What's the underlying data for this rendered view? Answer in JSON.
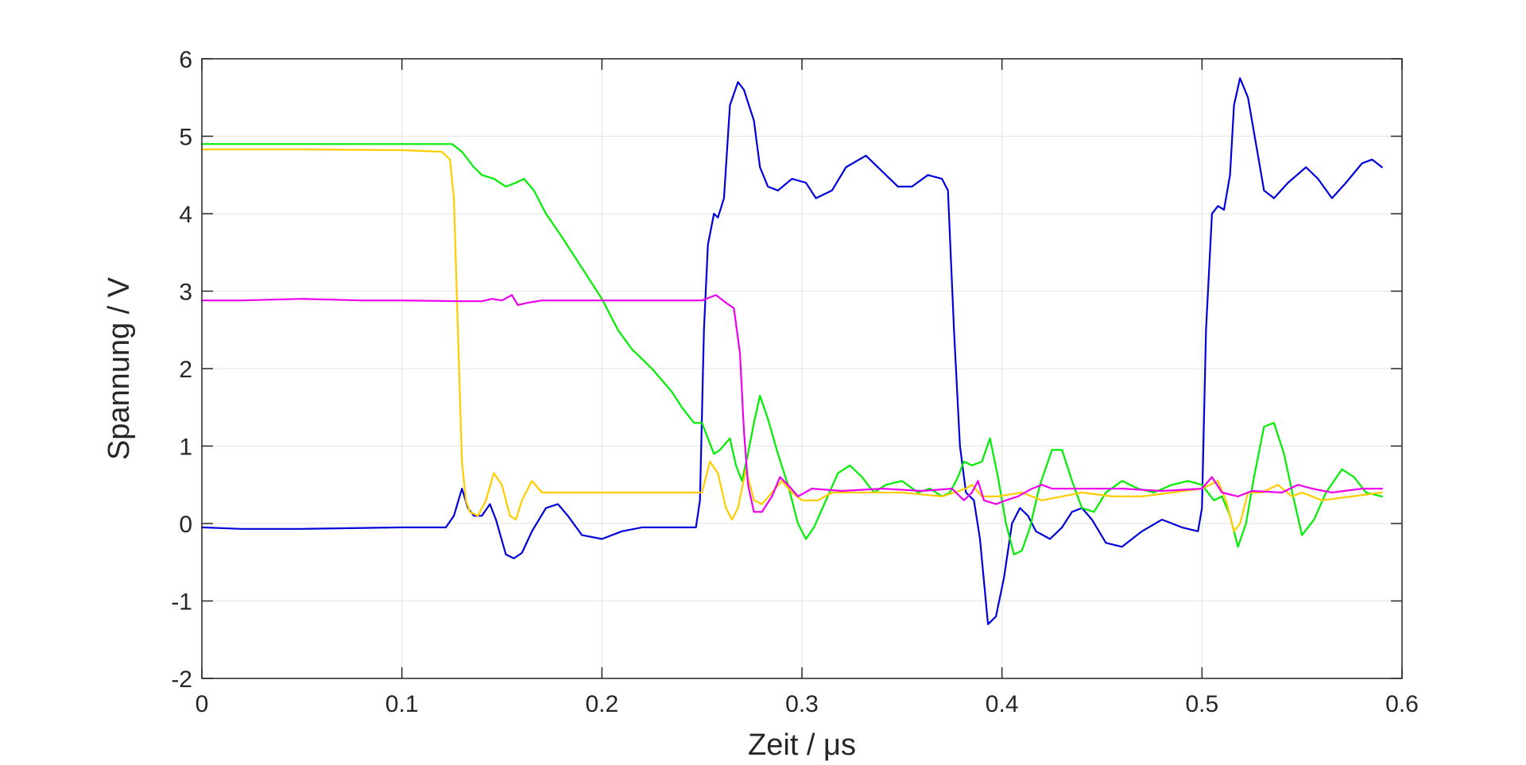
{
  "chart_data": {
    "type": "line",
    "xlabel": "Zeit / μs",
    "ylabel": "Spannung / V",
    "xlim": [
      0,
      0.6
    ],
    "ylim": [
      -2,
      6
    ],
    "x_ticks": [
      "0",
      "0.1",
      "0.2",
      "0.3",
      "0.4",
      "0.5",
      "0.6"
    ],
    "y_ticks": [
      "-2",
      "-1",
      "0",
      "1",
      "2",
      "3",
      "4",
      "5",
      "6"
    ],
    "grid": true,
    "series": [
      {
        "color": "#0000dd",
        "points": [
          [
            0,
            -0.05
          ],
          [
            0.02,
            -0.07
          ],
          [
            0.05,
            -0.07
          ],
          [
            0.1,
            -0.05
          ],
          [
            0.122,
            -0.05
          ],
          [
            0.126,
            0.1
          ],
          [
            0.13,
            0.45
          ],
          [
            0.133,
            0.2
          ],
          [
            0.136,
            0.1
          ],
          [
            0.14,
            0.1
          ],
          [
            0.144,
            0.25
          ],
          [
            0.147,
            0.05
          ],
          [
            0.152,
            -0.4
          ],
          [
            0.156,
            -0.45
          ],
          [
            0.16,
            -0.38
          ],
          [
            0.165,
            -0.1
          ],
          [
            0.172,
            0.2
          ],
          [
            0.178,
            0.25
          ],
          [
            0.183,
            0.1
          ],
          [
            0.19,
            -0.15
          ],
          [
            0.2,
            -0.2
          ],
          [
            0.21,
            -0.1
          ],
          [
            0.22,
            -0.05
          ],
          [
            0.235,
            -0.05
          ],
          [
            0.247,
            -0.05
          ],
          [
            0.249,
            0.3
          ],
          [
            0.251,
            2.5
          ],
          [
            0.253,
            3.6
          ],
          [
            0.256,
            4.0
          ],
          [
            0.258,
            3.95
          ],
          [
            0.261,
            4.2
          ],
          [
            0.264,
            5.4
          ],
          [
            0.268,
            5.7
          ],
          [
            0.271,
            5.6
          ],
          [
            0.276,
            5.2
          ],
          [
            0.279,
            4.6
          ],
          [
            0.283,
            4.35
          ],
          [
            0.288,
            4.3
          ],
          [
            0.295,
            4.45
          ],
          [
            0.302,
            4.4
          ],
          [
            0.307,
            4.2
          ],
          [
            0.315,
            4.3
          ],
          [
            0.322,
            4.6
          ],
          [
            0.332,
            4.75
          ],
          [
            0.342,
            4.5
          ],
          [
            0.348,
            4.35
          ],
          [
            0.355,
            4.35
          ],
          [
            0.363,
            4.5
          ],
          [
            0.37,
            4.45
          ],
          [
            0.373,
            4.3
          ],
          [
            0.376,
            2.5
          ],
          [
            0.379,
            1.0
          ],
          [
            0.382,
            0.4
          ],
          [
            0.386,
            0.3
          ],
          [
            0.389,
            -0.2
          ],
          [
            0.393,
            -1.3
          ],
          [
            0.397,
            -1.2
          ],
          [
            0.401,
            -0.7
          ],
          [
            0.405,
            0.0
          ],
          [
            0.409,
            0.2
          ],
          [
            0.413,
            0.1
          ],
          [
            0.417,
            -0.1
          ],
          [
            0.424,
            -0.2
          ],
          [
            0.43,
            -0.05
          ],
          [
            0.435,
            0.15
          ],
          [
            0.44,
            0.2
          ],
          [
            0.445,
            0.05
          ],
          [
            0.452,
            -0.25
          ],
          [
            0.46,
            -0.3
          ],
          [
            0.47,
            -0.1
          ],
          [
            0.48,
            0.05
          ],
          [
            0.49,
            -0.05
          ],
          [
            0.498,
            -0.1
          ],
          [
            0.5,
            0.2
          ],
          [
            0.502,
            2.5
          ],
          [
            0.505,
            4.0
          ],
          [
            0.508,
            4.1
          ],
          [
            0.511,
            4.05
          ],
          [
            0.514,
            4.5
          ],
          [
            0.516,
            5.4
          ],
          [
            0.519,
            5.75
          ],
          [
            0.523,
            5.5
          ],
          [
            0.527,
            4.9
          ],
          [
            0.531,
            4.3
          ],
          [
            0.536,
            4.2
          ],
          [
            0.543,
            4.4
          ],
          [
            0.552,
            4.6
          ],
          [
            0.558,
            4.45
          ],
          [
            0.565,
            4.2
          ],
          [
            0.572,
            4.4
          ],
          [
            0.58,
            4.65
          ],
          [
            0.585,
            4.7
          ],
          [
            0.59,
            4.6
          ]
        ]
      },
      {
        "color": "#00ee00",
        "points": [
          [
            0,
            4.9
          ],
          [
            0.05,
            4.9
          ],
          [
            0.1,
            4.9
          ],
          [
            0.125,
            4.9
          ],
          [
            0.13,
            4.8
          ],
          [
            0.136,
            4.6
          ],
          [
            0.14,
            4.5
          ],
          [
            0.146,
            4.45
          ],
          [
            0.152,
            4.35
          ],
          [
            0.157,
            4.4
          ],
          [
            0.161,
            4.45
          ],
          [
            0.166,
            4.3
          ],
          [
            0.172,
            4.0
          ],
          [
            0.18,
            3.7
          ],
          [
            0.19,
            3.3
          ],
          [
            0.2,
            2.9
          ],
          [
            0.208,
            2.5
          ],
          [
            0.215,
            2.25
          ],
          [
            0.225,
            2.0
          ],
          [
            0.235,
            1.7
          ],
          [
            0.24,
            1.5
          ],
          [
            0.246,
            1.3
          ],
          [
            0.25,
            1.3
          ],
          [
            0.253,
            1.1
          ],
          [
            0.256,
            0.9
          ],
          [
            0.259,
            0.95
          ],
          [
            0.264,
            1.1
          ],
          [
            0.267,
            0.75
          ],
          [
            0.27,
            0.55
          ],
          [
            0.273,
            0.9
          ],
          [
            0.276,
            1.3
          ],
          [
            0.279,
            1.65
          ],
          [
            0.283,
            1.35
          ],
          [
            0.288,
            0.9
          ],
          [
            0.293,
            0.5
          ],
          [
            0.298,
            0.0
          ],
          [
            0.302,
            -0.2
          ],
          [
            0.306,
            -0.05
          ],
          [
            0.312,
            0.3
          ],
          [
            0.318,
            0.65
          ],
          [
            0.324,
            0.75
          ],
          [
            0.33,
            0.6
          ],
          [
            0.336,
            0.4
          ],
          [
            0.342,
            0.5
          ],
          [
            0.35,
            0.55
          ],
          [
            0.358,
            0.4
          ],
          [
            0.364,
            0.45
          ],
          [
            0.37,
            0.35
          ],
          [
            0.374,
            0.4
          ],
          [
            0.378,
            0.6
          ],
          [
            0.381,
            0.8
          ],
          [
            0.385,
            0.75
          ],
          [
            0.39,
            0.8
          ],
          [
            0.394,
            1.1
          ],
          [
            0.398,
            0.6
          ],
          [
            0.402,
            0.0
          ],
          [
            0.406,
            -0.4
          ],
          [
            0.41,
            -0.35
          ],
          [
            0.414,
            -0.05
          ],
          [
            0.419,
            0.5
          ],
          [
            0.425,
            0.95
          ],
          [
            0.43,
            0.95
          ],
          [
            0.435,
            0.55
          ],
          [
            0.44,
            0.2
          ],
          [
            0.446,
            0.15
          ],
          [
            0.452,
            0.4
          ],
          [
            0.46,
            0.55
          ],
          [
            0.468,
            0.45
          ],
          [
            0.476,
            0.4
          ],
          [
            0.485,
            0.5
          ],
          [
            0.493,
            0.55
          ],
          [
            0.5,
            0.5
          ],
          [
            0.506,
            0.3
          ],
          [
            0.51,
            0.35
          ],
          [
            0.514,
            0.1
          ],
          [
            0.518,
            -0.3
          ],
          [
            0.522,
            0.0
          ],
          [
            0.526,
            0.6
          ],
          [
            0.531,
            1.25
          ],
          [
            0.536,
            1.3
          ],
          [
            0.541,
            0.9
          ],
          [
            0.546,
            0.3
          ],
          [
            0.55,
            -0.15
          ],
          [
            0.556,
            0.05
          ],
          [
            0.562,
            0.4
          ],
          [
            0.57,
            0.7
          ],
          [
            0.576,
            0.6
          ],
          [
            0.582,
            0.4
          ],
          [
            0.59,
            0.35
          ]
        ]
      },
      {
        "color": "#ffcc00",
        "points": [
          [
            0,
            4.83
          ],
          [
            0.05,
            4.83
          ],
          [
            0.1,
            4.82
          ],
          [
            0.12,
            4.8
          ],
          [
            0.124,
            4.7
          ],
          [
            0.126,
            4.2
          ],
          [
            0.128,
            2.5
          ],
          [
            0.13,
            0.8
          ],
          [
            0.132,
            0.3
          ],
          [
            0.134,
            0.15
          ],
          [
            0.138,
            0.1
          ],
          [
            0.142,
            0.3
          ],
          [
            0.146,
            0.65
          ],
          [
            0.15,
            0.5
          ],
          [
            0.154,
            0.1
          ],
          [
            0.157,
            0.05
          ],
          [
            0.16,
            0.3
          ],
          [
            0.165,
            0.55
          ],
          [
            0.17,
            0.4
          ],
          [
            0.176,
            0.4
          ],
          [
            0.185,
            0.4
          ],
          [
            0.2,
            0.4
          ],
          [
            0.22,
            0.4
          ],
          [
            0.245,
            0.4
          ],
          [
            0.25,
            0.4
          ],
          [
            0.254,
            0.8
          ],
          [
            0.258,
            0.65
          ],
          [
            0.262,
            0.2
          ],
          [
            0.265,
            0.05
          ],
          [
            0.268,
            0.2
          ],
          [
            0.272,
            0.7
          ],
          [
            0.276,
            0.3
          ],
          [
            0.28,
            0.25
          ],
          [
            0.285,
            0.4
          ],
          [
            0.29,
            0.55
          ],
          [
            0.295,
            0.4
          ],
          [
            0.3,
            0.3
          ],
          [
            0.308,
            0.3
          ],
          [
            0.315,
            0.4
          ],
          [
            0.33,
            0.4
          ],
          [
            0.35,
            0.4
          ],
          [
            0.37,
            0.35
          ],
          [
            0.382,
            0.45
          ],
          [
            0.385,
            0.5
          ],
          [
            0.39,
            0.35
          ],
          [
            0.398,
            0.35
          ],
          [
            0.41,
            0.4
          ],
          [
            0.42,
            0.3
          ],
          [
            0.43,
            0.35
          ],
          [
            0.44,
            0.4
          ],
          [
            0.455,
            0.35
          ],
          [
            0.47,
            0.35
          ],
          [
            0.485,
            0.4
          ],
          [
            0.5,
            0.45
          ],
          [
            0.508,
            0.55
          ],
          [
            0.512,
            0.3
          ],
          [
            0.516,
            -0.1
          ],
          [
            0.519,
            0.0
          ],
          [
            0.523,
            0.4
          ],
          [
            0.53,
            0.4
          ],
          [
            0.538,
            0.5
          ],
          [
            0.545,
            0.35
          ],
          [
            0.55,
            0.4
          ],
          [
            0.56,
            0.3
          ],
          [
            0.575,
            0.35
          ],
          [
            0.59,
            0.4
          ]
        ]
      },
      {
        "color": "#ee00ee",
        "points": [
          [
            0,
            2.88
          ],
          [
            0.02,
            2.88
          ],
          [
            0.05,
            2.9
          ],
          [
            0.08,
            2.88
          ],
          [
            0.1,
            2.88
          ],
          [
            0.13,
            2.87
          ],
          [
            0.14,
            2.87
          ],
          [
            0.145,
            2.9
          ],
          [
            0.15,
            2.88
          ],
          [
            0.155,
            2.95
          ],
          [
            0.158,
            2.82
          ],
          [
            0.163,
            2.85
          ],
          [
            0.17,
            2.88
          ],
          [
            0.2,
            2.88
          ],
          [
            0.23,
            2.88
          ],
          [
            0.25,
            2.88
          ],
          [
            0.257,
            2.95
          ],
          [
            0.262,
            2.85
          ],
          [
            0.266,
            2.78
          ],
          [
            0.269,
            2.2
          ],
          [
            0.271,
            1.2
          ],
          [
            0.273,
            0.5
          ],
          [
            0.276,
            0.15
          ],
          [
            0.28,
            0.15
          ],
          [
            0.285,
            0.35
          ],
          [
            0.289,
            0.6
          ],
          [
            0.293,
            0.5
          ],
          [
            0.298,
            0.35
          ],
          [
            0.305,
            0.45
          ],
          [
            0.32,
            0.42
          ],
          [
            0.34,
            0.45
          ],
          [
            0.36,
            0.42
          ],
          [
            0.375,
            0.45
          ],
          [
            0.381,
            0.3
          ],
          [
            0.385,
            0.4
          ],
          [
            0.388,
            0.55
          ],
          [
            0.391,
            0.3
          ],
          [
            0.397,
            0.25
          ],
          [
            0.402,
            0.3
          ],
          [
            0.408,
            0.35
          ],
          [
            0.415,
            0.45
          ],
          [
            0.42,
            0.5
          ],
          [
            0.425,
            0.45
          ],
          [
            0.44,
            0.45
          ],
          [
            0.46,
            0.45
          ],
          [
            0.48,
            0.42
          ],
          [
            0.5,
            0.45
          ],
          [
            0.505,
            0.6
          ],
          [
            0.51,
            0.4
          ],
          [
            0.518,
            0.35
          ],
          [
            0.525,
            0.42
          ],
          [
            0.54,
            0.4
          ],
          [
            0.548,
            0.5
          ],
          [
            0.555,
            0.45
          ],
          [
            0.565,
            0.4
          ],
          [
            0.58,
            0.45
          ],
          [
            0.59,
            0.45
          ]
        ]
      }
    ]
  }
}
